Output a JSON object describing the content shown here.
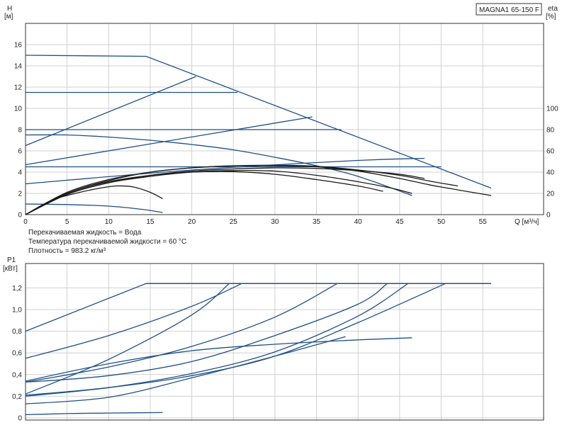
{
  "model_label": "MAGNA1 65-150 F",
  "notes": [
    "Перекачиваемая жидкость = Вода",
    "Температура перекачиваемой жидкости = 60 °C",
    "Плотность = 983.2 кг/м³"
  ],
  "chart_data": [
    {
      "type": "line",
      "name": "H-Q",
      "xlabel": "Q [м³/ч]",
      "ylabel_top": "H",
      "ylabel_unit": "[м]",
      "y2label_top": "eta",
      "y2label_unit": "[%]",
      "xlim": [
        0,
        60
      ],
      "ylim": [
        0,
        18
      ],
      "y2lim": [
        0,
        100
      ],
      "x_ticks": [
        "0",
        "5",
        "10",
        "15",
        "20",
        "25",
        "30",
        "35",
        "40",
        "45",
        "50",
        "55"
      ],
      "y_ticks": [
        "0",
        "2",
        "4",
        "6",
        "8",
        "10",
        "12",
        "14",
        "16"
      ],
      "y2_ticks": [
        "0",
        "20",
        "40",
        "60",
        "80",
        "100"
      ],
      "grid": true,
      "series": [
        {
          "role": "head",
          "color": "#1f4f86",
          "points": [
            [
              0,
              15
            ],
            [
              14.5,
              14.9
            ],
            [
              56,
              2.5
            ]
          ]
        },
        {
          "role": "head",
          "color": "#1f4f86",
          "points": [
            [
              0,
              11.5
            ],
            [
              25.5,
              11.5
            ]
          ]
        },
        {
          "role": "head",
          "color": "#1f4f86",
          "points": [
            [
              0,
              8
            ],
            [
              38,
              8
            ]
          ]
        },
        {
          "role": "head",
          "color": "#1f4f86",
          "points": [
            [
              0,
              4.5
            ],
            [
              50,
              4.5
            ]
          ]
        },
        {
          "role": "head",
          "color": "#1f4f86",
          "points": [
            [
              0,
              6.5
            ],
            [
              20.5,
              13
            ]
          ]
        },
        {
          "role": "head",
          "color": "#1f4f86",
          "points": [
            [
              0,
              4.7
            ],
            [
              34.5,
              9.2
            ]
          ]
        },
        {
          "role": "head",
          "color": "#1f4f86",
          "points": [
            [
              0,
              2.9
            ],
            [
              20,
              4.2
            ],
            [
              40,
              5.1
            ],
            [
              48,
              5.3
            ]
          ]
        },
        {
          "role": "head",
          "color": "#1f4f86",
          "points": [
            [
              0,
              7.5
            ],
            [
              5,
              7.5
            ],
            [
              10,
              7.3
            ],
            [
              15,
              7
            ],
            [
              20,
              6.6
            ],
            [
              25,
              6.1
            ],
            [
              30,
              5.4
            ],
            [
              35,
              4.6
            ],
            [
              40,
              3.6
            ],
            [
              46.5,
              1.8
            ]
          ]
        },
        {
          "role": "head",
          "color": "#1f4f86",
          "points": [
            [
              0,
              1
            ],
            [
              5,
              0.95
            ],
            [
              10,
              0.8
            ],
            [
              14,
              0.5
            ],
            [
              16.5,
              0.2
            ]
          ]
        },
        {
          "role": "efficiency",
          "color": "#1a1a1a",
          "points": [
            [
              0,
              0
            ],
            [
              5,
              20
            ],
            [
              10,
              32
            ],
            [
              15,
              40
            ],
            [
              20,
              44
            ],
            [
              25,
              46
            ],
            [
              30,
              46
            ],
            [
              35,
              45
            ],
            [
              40,
              41
            ],
            [
              45,
              34
            ],
            [
              48,
              29
            ],
            [
              50,
              26
            ],
            [
              56,
              18
            ]
          ]
        },
        {
          "role": "efficiency",
          "color": "#1a1a1a",
          "points": [
            [
              0,
              0
            ],
            [
              5,
              21
            ],
            [
              10,
              33
            ],
            [
              15,
              40
            ],
            [
              20,
              44
            ],
            [
              25,
              46
            ],
            [
              30,
              46.5
            ],
            [
              35,
              45.5
            ],
            [
              40,
              42
            ],
            [
              45,
              37
            ],
            [
              49,
              31
            ],
            [
              52,
              27
            ]
          ]
        },
        {
          "role": "efficiency",
          "color": "#1a1a1a",
          "points": [
            [
              0,
              0
            ],
            [
              5,
              19
            ],
            [
              10,
              30
            ],
            [
              15,
              37
            ],
            [
              20,
              41
            ],
            [
              25,
              43
            ],
            [
              30,
              44
            ],
            [
              35,
              43.5
            ],
            [
              40,
              41.5
            ],
            [
              45,
              38
            ],
            [
              48,
              34
            ]
          ]
        },
        {
          "role": "efficiency",
          "color": "#1a1a1a",
          "points": [
            [
              0,
              0
            ],
            [
              5,
              19
            ],
            [
              10,
              30
            ],
            [
              15,
              36
            ],
            [
              20,
              40
            ],
            [
              25,
              41.5
            ],
            [
              30,
              41
            ],
            [
              35,
              37
            ],
            [
              40,
              31
            ],
            [
              44,
              25
            ],
            [
              46.5,
              20
            ]
          ]
        },
        {
          "role": "efficiency",
          "color": "#1a1a1a",
          "points": [
            [
              0,
              0
            ],
            [
              5,
              20
            ],
            [
              10,
              31
            ],
            [
              15,
              37
            ],
            [
              20,
              40
            ],
            [
              25,
              40.5
            ],
            [
              30,
              38
            ],
            [
              35,
              33
            ],
            [
              40,
              27
            ],
            [
              43,
              22
            ]
          ]
        },
        {
          "role": "efficiency",
          "color": "#1a1a1a",
          "points": [
            [
              0,
              0
            ],
            [
              3,
              13
            ],
            [
              6,
              20
            ],
            [
              9,
              25
            ],
            [
              11,
              27
            ],
            [
              13,
              26
            ],
            [
              15,
              21
            ],
            [
              16.5,
              15
            ]
          ]
        }
      ]
    },
    {
      "type": "line",
      "name": "P1-Q",
      "ylabel_top": "P1",
      "ylabel_unit": "[кВт]",
      "xlim": [
        0,
        60
      ],
      "ylim": [
        0,
        1.3
      ],
      "y_ticks": [
        "0",
        "0,2",
        "0,4",
        "0,6",
        "0,8",
        "1,0",
        "1,2"
      ],
      "grid": true,
      "series": [
        {
          "color": "#1f4f86",
          "points": [
            [
              0,
              0.8
            ],
            [
              14.5,
              1.24
            ],
            [
              56,
              1.24
            ]
          ]
        },
        {
          "color": "#1f4f86",
          "points": [
            [
              0,
              0.55
            ],
            [
              10,
              0.76
            ],
            [
              20,
              1.03
            ],
            [
              26,
              1.24
            ]
          ]
        },
        {
          "color": "#1f4f86",
          "points": [
            [
              0,
              0.22
            ],
            [
              10,
              0.54
            ],
            [
              20,
              0.95
            ],
            [
              24.5,
              1.24
            ]
          ]
        },
        {
          "color": "#1f4f86",
          "points": [
            [
              0,
              0.33
            ],
            [
              10,
              0.47
            ],
            [
              20,
              0.66
            ],
            [
              30,
              0.93
            ],
            [
              37.5,
              1.24
            ]
          ]
        },
        {
          "color": "#1f4f86",
          "points": [
            [
              0,
              0.33
            ],
            [
              10,
              0.39
            ],
            [
              20,
              0.52
            ],
            [
              30,
              0.76
            ],
            [
              40,
              1.05
            ],
            [
              43.5,
              1.24
            ]
          ]
        },
        {
          "color": "#1f4f86",
          "points": [
            [
              0,
              0.2
            ],
            [
              10,
              0.28
            ],
            [
              20,
              0.41
            ],
            [
              30,
              0.61
            ],
            [
              40,
              0.94
            ],
            [
              46,
              1.24
            ]
          ]
        },
        {
          "color": "#1f4f86",
          "points": [
            [
              0,
              0.21
            ],
            [
              10,
              0.28
            ],
            [
              20,
              0.39
            ],
            [
              30,
              0.57
            ],
            [
              40,
              0.88
            ],
            [
              50.5,
              1.24
            ]
          ]
        },
        {
          "color": "#1f4f86",
          "points": [
            [
              0,
              0.34
            ],
            [
              10,
              0.5
            ],
            [
              20,
              0.62
            ],
            [
              30,
              0.68
            ],
            [
              40,
              0.72
            ],
            [
              46.5,
              0.74
            ]
          ]
        },
        {
          "color": "#1f4f86",
          "points": [
            [
              0,
              0.13
            ],
            [
              10,
              0.19
            ],
            [
              20,
              0.37
            ],
            [
              30,
              0.57
            ],
            [
              38.5,
              0.75
            ]
          ]
        },
        {
          "color": "#1f4f86",
          "points": [
            [
              0,
              0.03
            ],
            [
              5,
              0.04
            ],
            [
              10,
              0.045
            ],
            [
              16.5,
              0.05
            ]
          ]
        }
      ]
    }
  ]
}
